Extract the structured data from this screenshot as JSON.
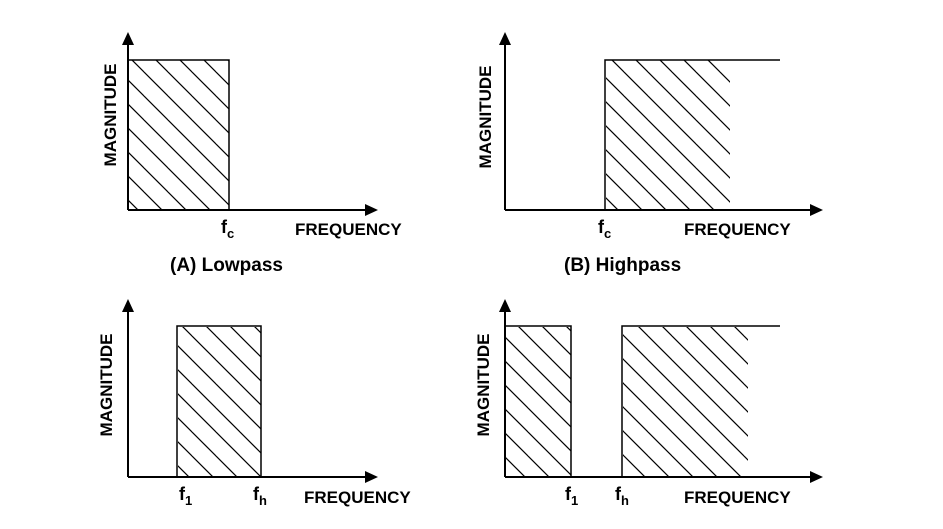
{
  "colors": {
    "ink": "#000000",
    "background": "#ffffff"
  },
  "panels": [
    {
      "id": "lowpass",
      "ylabel": "MAGNITUDE",
      "xlabel": "FREQUENCY",
      "caption": "(A) Lowpass",
      "ticks": [
        {
          "main": "f",
          "sub": "c"
        }
      ]
    },
    {
      "id": "highpass",
      "ylabel": "MAGNITUDE",
      "xlabel": "FREQUENCY",
      "caption": "(B) Highpass",
      "ticks": [
        {
          "main": "f",
          "sub": "c"
        }
      ]
    },
    {
      "id": "bandpass",
      "ylabel": "MAGNITUDE",
      "xlabel": "FREQUENCY",
      "caption": "",
      "ticks": [
        {
          "main": "f",
          "sub": "1"
        },
        {
          "main": "f",
          "sub": "h"
        }
      ]
    },
    {
      "id": "bandstop",
      "ylabel": "MAGNITUDE",
      "xlabel": "FREQUENCY",
      "caption": "",
      "ticks": [
        {
          "main": "f",
          "sub": "1"
        },
        {
          "main": "f",
          "sub": "h"
        }
      ]
    }
  ]
}
